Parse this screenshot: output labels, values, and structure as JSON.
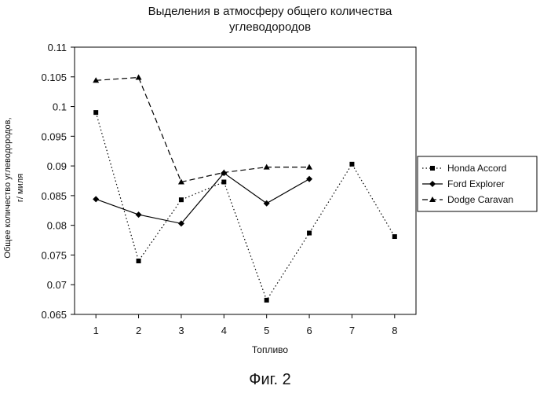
{
  "chart_data": {
    "type": "line",
    "title_line1": "Выделения в атмосферу общего количества",
    "title_line2": "углеводородов",
    "ylabel_line1": "Общее количество углеводородов,",
    "ylabel_line2": "г/ миля",
    "xlabel": "Топливо",
    "x": [
      1,
      2,
      3,
      4,
      5,
      6,
      7,
      8
    ],
    "x_tick_labels": [
      "1",
      "2",
      "3",
      "4",
      "5",
      "6",
      "7",
      "8"
    ],
    "y_tick_labels": [
      "0.065",
      "0.07",
      "0.075",
      "0.08",
      "0.085",
      "0.09",
      "0.095",
      "0.1",
      "0.105",
      "0.11"
    ],
    "ylim": [
      0.065,
      0.11
    ],
    "xlim": [
      0.5,
      8.5
    ],
    "grid": false,
    "legend_position": "right",
    "series": [
      {
        "name": "Honda Accord",
        "marker": "square",
        "line_style": "dotted",
        "x": [
          1,
          2,
          3,
          4,
          5,
          6,
          7,
          8
        ],
        "values": [
          0.099,
          0.074,
          0.0843,
          0.0873,
          0.0674,
          0.0787,
          0.0903,
          0.0781
        ]
      },
      {
        "name": "Ford Explorer",
        "marker": "diamond",
        "line_style": "solid",
        "x": [
          1,
          2,
          3,
          4,
          5,
          6
        ],
        "values": [
          0.0844,
          0.0818,
          0.0803,
          0.0888,
          0.0837,
          0.0878
        ]
      },
      {
        "name": "Dodge Caravan",
        "marker": "triangle",
        "line_style": "dashed",
        "x": [
          1,
          2,
          3,
          4,
          5,
          6
        ],
        "values": [
          0.1044,
          0.1049,
          0.0873,
          0.0889,
          0.0898,
          0.0898
        ]
      }
    ]
  },
  "caption": "Фиг. 2"
}
